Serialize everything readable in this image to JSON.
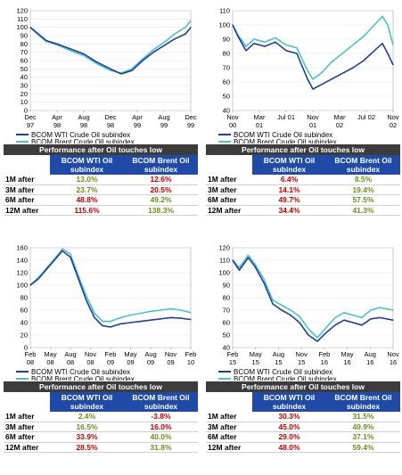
{
  "colors": {
    "wti": "#1f3f99",
    "brent": "#49c3c6",
    "header": "#1f4aa8",
    "title_bar": "#3c3c3c",
    "positive_red": "#c00000",
    "positive_green": "#6a8f1a"
  },
  "legend": {
    "wti": "BCOM WTI Crude Oil subindex",
    "brent": "BCOM Brent Crude Oil subindex"
  },
  "table": {
    "title": "Performance after Oil touches low",
    "col1_line1": "BCOM WTI Oil",
    "col1_line2": "subindex",
    "col2_line1": "BCOM Brent Oil",
    "col2_line2": "subindex",
    "rows": [
      "1M after",
      "3M after",
      "6M after",
      "12M after"
    ]
  },
  "panels": [
    {
      "perf": [
        [
          "13.0%",
          "12.6%"
        ],
        [
          "23.7%",
          "20.5%"
        ],
        [
          "48.8%",
          "49.2%"
        ],
        [
          "115.6%",
          "138.3%"
        ]
      ],
      "perf_colors": [
        [
          "green",
          "red"
        ],
        [
          "green",
          "red"
        ],
        [
          "red",
          "green"
        ],
        [
          "red",
          "green"
        ]
      ]
    },
    {
      "perf": [
        [
          "6.4%",
          "8.5%"
        ],
        [
          "14.1%",
          "19.4%"
        ],
        [
          "49.7%",
          "57.5%"
        ],
        [
          "34.4%",
          "41.3%"
        ]
      ],
      "perf_colors": [
        [
          "red",
          "green"
        ],
        [
          "red",
          "green"
        ],
        [
          "red",
          "green"
        ],
        [
          "red",
          "green"
        ]
      ]
    },
    {
      "perf": [
        [
          "2.4%",
          "-3.8%"
        ],
        [
          "16.5%",
          "16.0%"
        ],
        [
          "33.9%",
          "40.0%"
        ],
        [
          "28.5%",
          "31.8%"
        ]
      ],
      "perf_colors": [
        [
          "green",
          "red"
        ],
        [
          "green",
          "red"
        ],
        [
          "red",
          "green"
        ],
        [
          "red",
          "green"
        ]
      ]
    },
    {
      "perf": [
        [
          "30.3%",
          "31.5%"
        ],
        [
          "45.0%",
          "49.9%"
        ],
        [
          "29.0%",
          "37.1%"
        ],
        [
          "48.0%",
          "59.4%"
        ]
      ],
      "perf_colors": [
        [
          "red",
          "green"
        ],
        [
          "red",
          "green"
        ],
        [
          "red",
          "green"
        ],
        [
          "red",
          "green"
        ]
      ]
    }
  ],
  "chart_data": [
    {
      "type": "line",
      "ylim": [
        0,
        120
      ],
      "yticks": [
        "0",
        "10",
        "20",
        "30",
        "40",
        "50",
        "60",
        "70",
        "80",
        "90",
        "100",
        "110",
        "120"
      ],
      "xticks": [
        [
          "Dec",
          "97"
        ],
        [
          "Apr",
          "98"
        ],
        [
          "Aug",
          "98"
        ],
        [
          "Dec",
          "98"
        ],
        [
          "Apr",
          "99"
        ],
        [
          "Aug",
          "99"
        ],
        [
          "Dec",
          "99"
        ]
      ],
      "x": [
        0,
        0.3,
        0.6,
        1,
        1.5,
        2,
        2.5,
        3,
        3.4,
        3.8,
        4.2,
        4.6,
        5,
        5.4,
        5.8,
        6
      ],
      "series": [
        {
          "name": "BCOM WTI Crude Oil subindex",
          "values": [
            100,
            92,
            84,
            80,
            74,
            68,
            58,
            50,
            44,
            48,
            60,
            70,
            78,
            86,
            92,
            100
          ]
        },
        {
          "name": "BCOM Brent Crude Oil subindex",
          "values": [
            100,
            91,
            83,
            79,
            72,
            66,
            56,
            48,
            45,
            50,
            62,
            73,
            82,
            92,
            100,
            108
          ]
        }
      ]
    },
    {
      "type": "line",
      "ylim": [
        40,
        110
      ],
      "yticks": [
        "40",
        "50",
        "60",
        "70",
        "80",
        "90",
        "100",
        "110"
      ],
      "xticks": [
        [
          "Nov",
          "00"
        ],
        [
          "Mar",
          "01"
        ],
        [
          "Jul 01",
          ""
        ],
        [
          "Nov",
          "01"
        ],
        [
          "Mar",
          "02"
        ],
        [
          "Jul 02",
          ""
        ],
        [
          "Nov",
          "02"
        ]
      ],
      "x": [
        0,
        0.2,
        0.5,
        0.8,
        1.2,
        1.6,
        2,
        2.4,
        2.8,
        3,
        3.3,
        3.7,
        4.1,
        4.5,
        4.9,
        5.3,
        5.6,
        5.8,
        6
      ],
      "series": [
        {
          "name": "BCOM WTI Crude Oil subindex",
          "values": [
            100,
            92,
            82,
            87,
            85,
            88,
            82,
            80,
            62,
            55,
            58,
            62,
            66,
            70,
            75,
            82,
            87,
            80,
            72
          ]
        },
        {
          "name": "BCOM Brent Crude Oil subindex",
          "values": [
            100,
            93,
            85,
            90,
            88,
            91,
            86,
            84,
            68,
            62,
            66,
            74,
            80,
            86,
            92,
            100,
            106,
            100,
            86
          ]
        }
      ]
    },
    {
      "type": "line",
      "ylim": [
        0,
        160
      ],
      "yticks": [
        "0",
        "20",
        "40",
        "60",
        "80",
        "100",
        "120",
        "140",
        "160"
      ],
      "xticks": [
        [
          "Feb",
          "08"
        ],
        [
          "May",
          "08"
        ],
        [
          "Aug",
          "08"
        ],
        [
          "Nov",
          "08"
        ],
        [
          "Feb",
          "09"
        ],
        [
          "May",
          "09"
        ],
        [
          "Aug",
          "09"
        ],
        [
          "Nov",
          "09"
        ],
        [
          "Feb",
          "10"
        ]
      ],
      "x": [
        0,
        0.4,
        0.8,
        1.2,
        1.6,
        2,
        2.4,
        2.8,
        3.2,
        3.6,
        4,
        4.5,
        5,
        5.5,
        6,
        6.5,
        7,
        7.5,
        8
      ],
      "series": [
        {
          "name": "BCOM WTI Crude Oil subindex",
          "values": [
            100,
            110,
            125,
            140,
            155,
            145,
            110,
            75,
            48,
            35,
            33,
            38,
            40,
            42,
            44,
            46,
            48,
            47,
            45
          ]
        },
        {
          "name": "BCOM Brent Crude Oil subindex",
          "values": [
            100,
            112,
            127,
            142,
            158,
            150,
            115,
            82,
            55,
            42,
            42,
            48,
            52,
            55,
            58,
            60,
            62,
            60,
            56
          ]
        }
      ]
    },
    {
      "type": "line",
      "ylim": [
        40,
        120
      ],
      "yticks": [
        "40",
        "50",
        "60",
        "70",
        "80",
        "90",
        "100",
        "110",
        "120"
      ],
      "xticks": [
        [
          "Feb",
          "15"
        ],
        [
          "May",
          "15"
        ],
        [
          "Aug",
          "15"
        ],
        [
          "Nov",
          "15"
        ],
        [
          "Feb",
          "16"
        ],
        [
          "May",
          "16"
        ],
        [
          "Aug",
          "16"
        ],
        [
          "Nov",
          "16"
        ]
      ],
      "x": [
        0,
        0.3,
        0.7,
        1,
        1.4,
        1.8,
        2.2,
        2.6,
        3,
        3.4,
        3.8,
        4.2,
        4.6,
        5,
        5.4,
        5.8,
        6.2,
        6.6,
        7.2
      ],
      "series": [
        {
          "name": "BCOM WTI Crude Oil subindex",
          "values": [
            110,
            102,
            112,
            105,
            92,
            75,
            70,
            66,
            60,
            50,
            45,
            52,
            58,
            62,
            60,
            58,
            63,
            64,
            62
          ]
        },
        {
          "name": "BCOM Brent Crude Oil subindex",
          "values": [
            110,
            104,
            114,
            107,
            95,
            78,
            74,
            70,
            65,
            55,
            48,
            56,
            64,
            68,
            66,
            64,
            70,
            72,
            70
          ]
        }
      ]
    }
  ]
}
